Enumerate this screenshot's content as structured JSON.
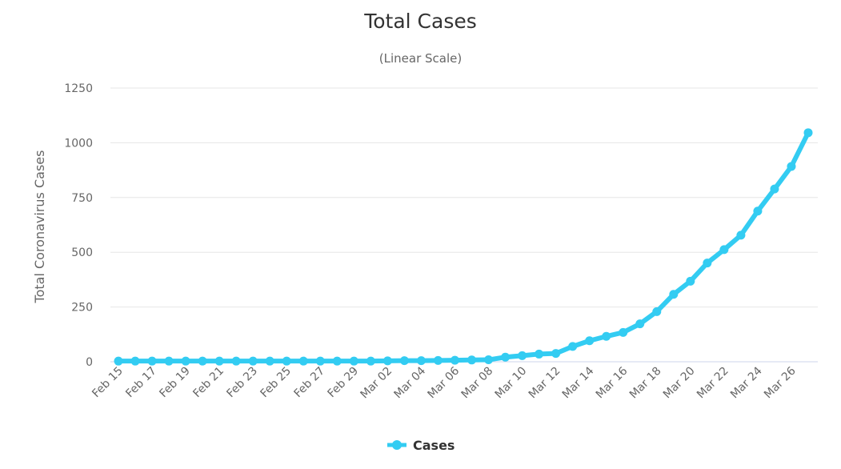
{
  "chart_data": {
    "type": "line",
    "title": "Total Cases",
    "subtitle": "(Linear Scale)",
    "xlabel": "",
    "ylabel": "Total Coronavirus Cases",
    "ylim": [
      0,
      1250
    ],
    "yticks": [
      0,
      250,
      500,
      750,
      1000,
      1250
    ],
    "grid": true,
    "legend_position": "bottom",
    "categories": [
      "Feb 15",
      "Feb 16",
      "Feb 17",
      "Feb 18",
      "Feb 19",
      "Feb 20",
      "Feb 21",
      "Feb 22",
      "Feb 23",
      "Feb 24",
      "Feb 25",
      "Feb 26",
      "Feb 27",
      "Feb 28",
      "Feb 29",
      "Mar 01",
      "Mar 02",
      "Mar 03",
      "Mar 04",
      "Mar 05",
      "Mar 06",
      "Mar 07",
      "Mar 08",
      "Mar 09",
      "Mar 10",
      "Mar 11",
      "Mar 12",
      "Mar 13",
      "Mar 14",
      "Mar 15",
      "Mar 16",
      "Mar 17",
      "Mar 18",
      "Mar 19",
      "Mar 20",
      "Mar 21",
      "Mar 22",
      "Mar 23",
      "Mar 24",
      "Mar 25",
      "Mar 26",
      "Mar 27"
    ],
    "xtick_labels": [
      "Feb 15",
      "Feb 17",
      "Feb 19",
      "Feb 21",
      "Feb 23",
      "Feb 25",
      "Feb 27",
      "Feb 29",
      "Mar 02",
      "Mar 04",
      "Mar 06",
      "Mar 08",
      "Mar 10",
      "Mar 12",
      "Mar 14",
      "Mar 16",
      "Mar 18",
      "Mar 20",
      "Mar 22",
      "Mar 24",
      "Mar 26"
    ],
    "series": [
      {
        "name": "Cases",
        "color": "#33ccf2",
        "values": [
          3,
          3,
          3,
          3,
          3,
          3,
          3,
          3,
          3,
          3,
          3,
          3,
          3,
          3,
          3,
          3,
          4,
          5,
          5,
          6,
          7,
          8,
          9,
          21,
          28,
          35,
          38,
          70,
          96,
          116,
          134,
          173,
          229,
          308,
          368,
          451,
          512,
          578,
          688,
          789,
          892,
          1046
        ]
      }
    ]
  }
}
